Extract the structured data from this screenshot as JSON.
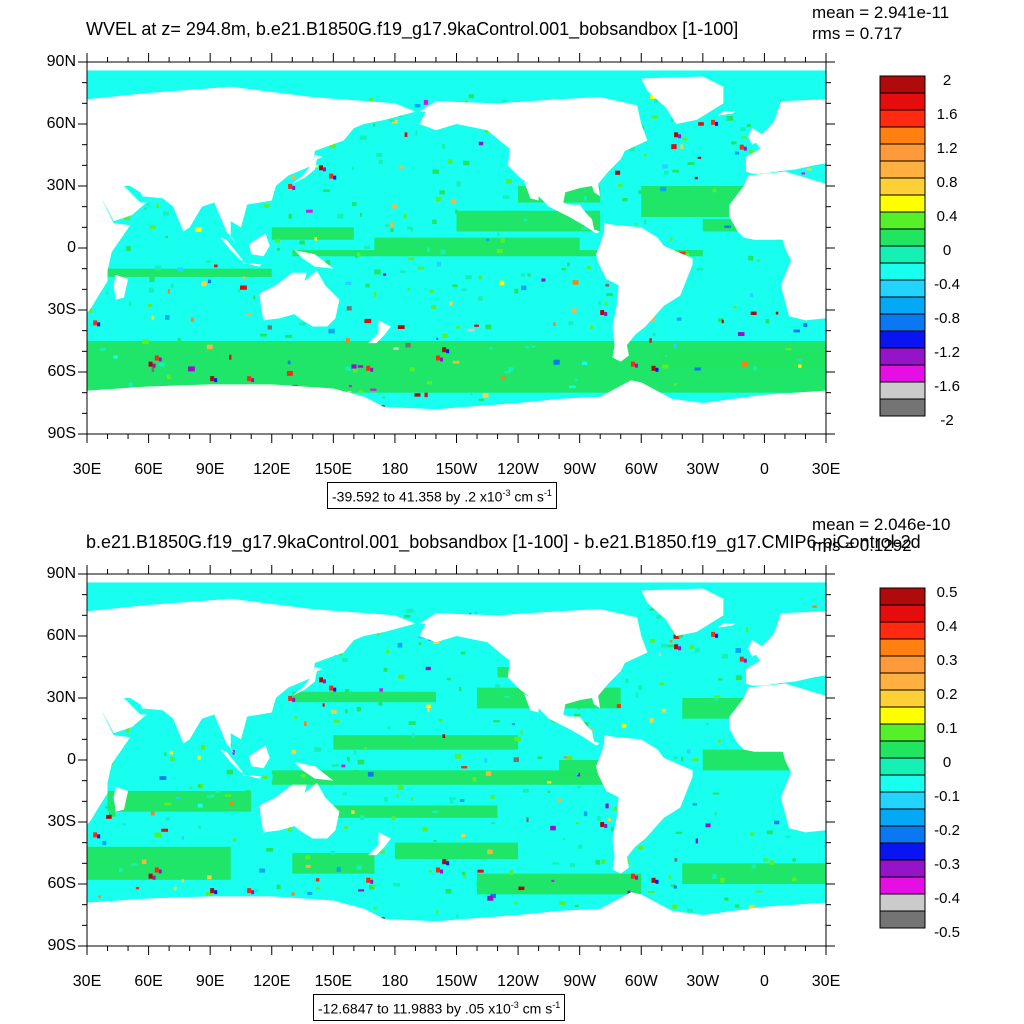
{
  "chart_data": [
    {
      "type": "heatmap",
      "title": "WVEL at z= 294.8m, b.e21.B1850G.f19_g17.9kaControl.001_bobsandbox [1-100]",
      "stats": {
        "mean": "mean = 2.941e-11",
        "rms": "rms = 0.717"
      },
      "lat_ticks": [
        "90N",
        "60N",
        "30N",
        "0",
        "30S",
        "60S",
        "90S"
      ],
      "lon_ticks": [
        "30E",
        "60E",
        "90E",
        "120E",
        "150E",
        "180",
        "150W",
        "120W",
        "90W",
        "60W",
        "30W",
        "0",
        "30E"
      ],
      "colorbar_labels": [
        "2",
        "1.6",
        "1.2",
        "0.8",
        "0.4",
        "0",
        "-0.4",
        "-0.8",
        "-1.2",
        "-1.6",
        "-2"
      ],
      "colorbar_range": [
        -2,
        2
      ],
      "info": {
        "range": "-39.592 to 41.358 by .2 x10",
        "exp": "-3",
        "unit": " cm s",
        "unit_exp": "-1"
      },
      "data_range": [
        -39.592,
        41.358
      ],
      "contour_interval": 0.2
    },
    {
      "type": "heatmap",
      "title": "b.e21.B1850G.f19_g17.9kaControl.001_bobsandbox [1-100] - b.e21.B1850.f19_g17.CMIP6-piControl-2d",
      "stats": {
        "mean": "mean = 2.046e-10",
        "rms": "rms = 0.1292"
      },
      "lat_ticks": [
        "90N",
        "60N",
        "30N",
        "0",
        "30S",
        "60S",
        "90S"
      ],
      "lon_ticks": [
        "30E",
        "60E",
        "90E",
        "120E",
        "150E",
        "180",
        "150W",
        "120W",
        "90W",
        "60W",
        "30W",
        "0",
        "30E"
      ],
      "colorbar_labels": [
        "0.5",
        "0.4",
        "0.3",
        "0.2",
        "0.1",
        "0",
        "-0.1",
        "-0.2",
        "-0.3",
        "-0.4",
        "-0.5"
      ],
      "colorbar_range": [
        -0.5,
        0.5
      ],
      "info": {
        "range": "-12.6847 to 11.9883 by .05 x10",
        "exp": "-3",
        "unit": " cm s",
        "unit_exp": "-1"
      },
      "data_range": [
        -12.6847,
        11.9883
      ],
      "contour_interval": 0.05
    }
  ],
  "colormap": [
    "#747474",
    "#cbcbcb",
    "#e50ee5",
    "#9514c8",
    "#0a14f0",
    "#0a78f0",
    "#05a8f5",
    "#22d4ff",
    "#18fff0",
    "#15f0b4",
    "#20e560",
    "#55f02a",
    "#ffff00",
    "#ffd035",
    "#ffb040",
    "#ff9a3a",
    "#ff8010",
    "#ff2a10",
    "#e40c0c",
    "#b00a0a"
  ],
  "colors": {
    "land": "#ffffff",
    "ocean_base": "#18fff0",
    "ocean_green": "#20e560"
  }
}
